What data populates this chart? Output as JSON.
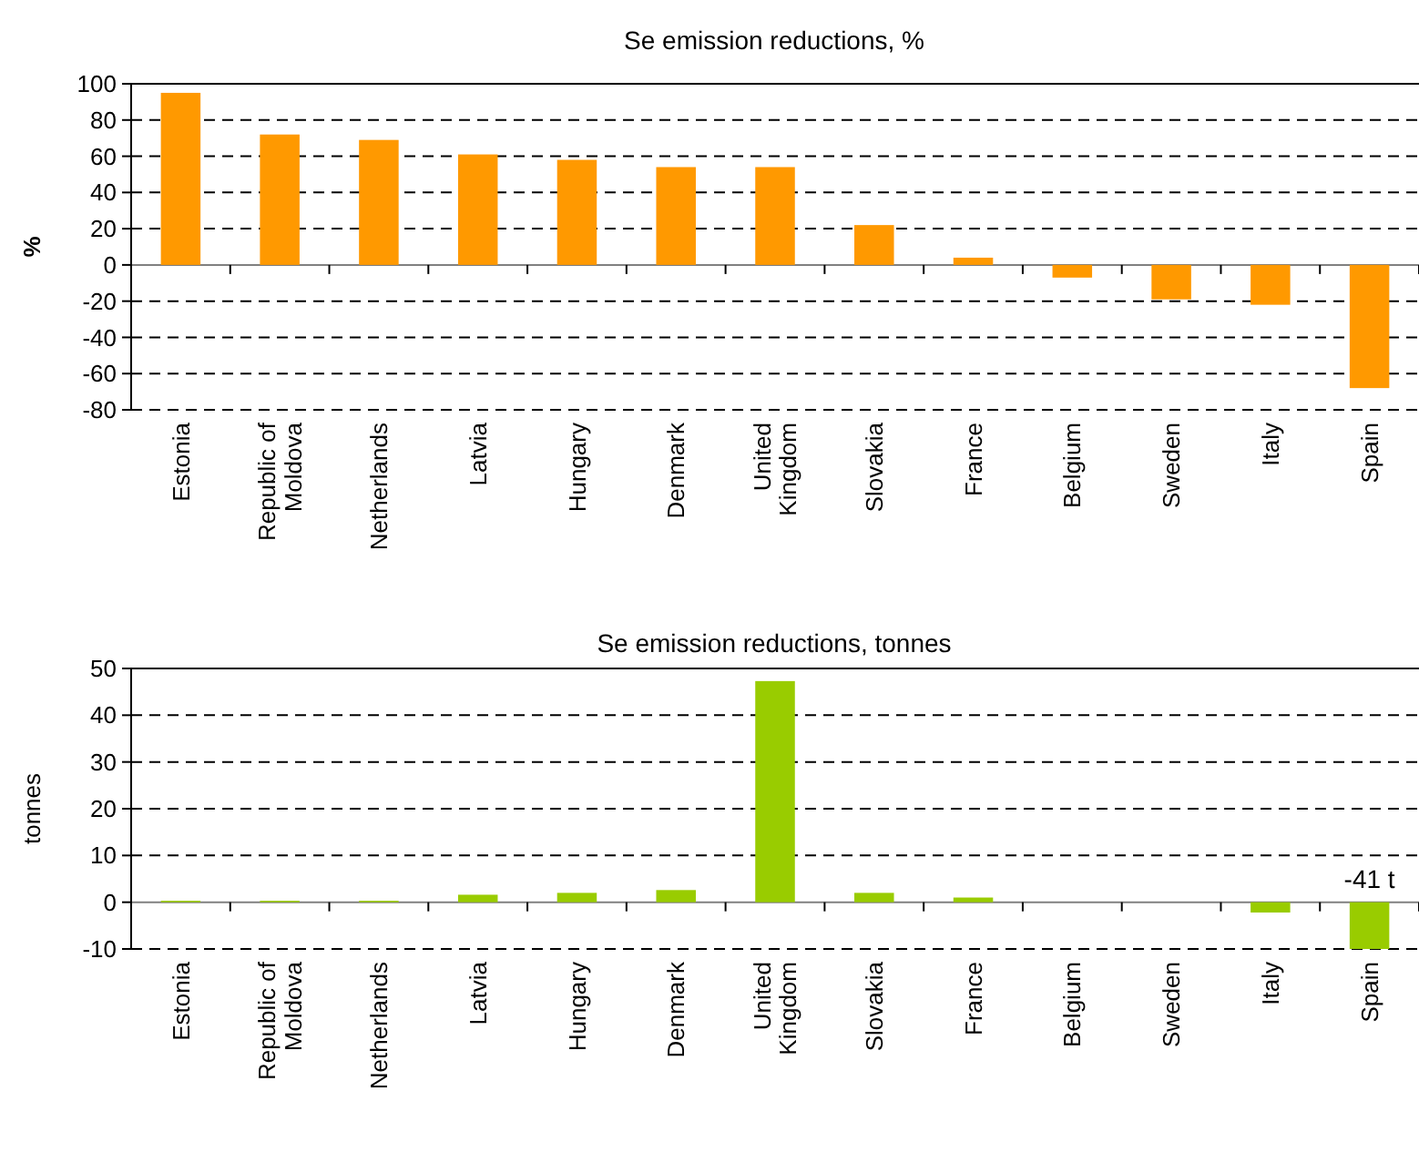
{
  "chart_data": [
    {
      "type": "bar",
      "title": "Se emission reductions, %",
      "ylabel": "%",
      "categories": [
        "Estonia",
        "Republic of Moldova",
        "Netherlands",
        "Latvia",
        "Hungary",
        "Denmark",
        "United Kingdom",
        "Slovakia",
        "France",
        "Belgium",
        "Sweden",
        "Italy",
        "Spain"
      ],
      "color": "#ff9900",
      "values": [
        95,
        72,
        69,
        61,
        58,
        54,
        54,
        22,
        4,
        -7,
        -19,
        -22,
        -68
      ],
      "ylim": [
        -80,
        100
      ],
      "yticks": [
        -80,
        -60,
        -40,
        -20,
        0,
        20,
        40,
        60,
        80,
        100
      ],
      "grid": "y"
    },
    {
      "type": "bar",
      "title": "Se emission reductions, tonnes",
      "ylabel": "tonnes",
      "categories": [
        "Estonia",
        "Republic of Moldova",
        "Netherlands",
        "Latvia",
        "Hungary",
        "Denmark",
        "United Kingdom",
        "Slovakia",
        "France",
        "Belgium",
        "Sweden",
        "Italy",
        "Spain"
      ],
      "color": "#99cc00",
      "values": [
        0.3,
        0.3,
        0.3,
        1.6,
        2,
        2.6,
        47.3,
        2,
        1,
        0,
        0,
        -2.2,
        -10
      ],
      "ylim": [
        -10,
        50
      ],
      "yticks": [
        -10,
        0,
        10,
        20,
        30,
        40,
        50
      ],
      "grid": "y",
      "annotations": [
        "-41 t"
      ]
    }
  ]
}
